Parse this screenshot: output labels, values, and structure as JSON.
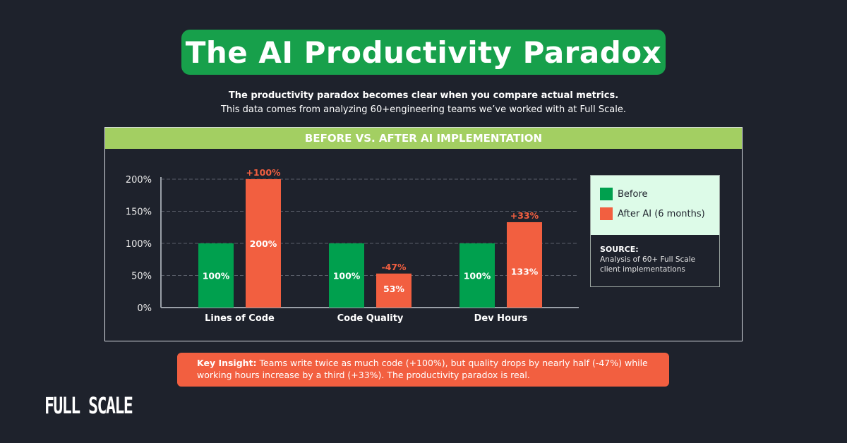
{
  "title": "The AI Productivity Paradox",
  "subtitle_bold": "The productivity paradox becomes clear when you compare actual metrics.",
  "subtitle": "This data comes from analyzing 60+engineering teams we’ve worked with at Full Scale.",
  "panel_header": "BEFORE VS. AFTER AI IMPLEMENTATION",
  "chart_data": {
    "type": "bar",
    "categories": [
      "Lines of Code",
      "Code Quality",
      "Dev Hours"
    ],
    "series": [
      {
        "name": "Before",
        "color": "#00a04e",
        "values": [
          100,
          100,
          100
        ],
        "labels": [
          "100%",
          "100%",
          "100%"
        ]
      },
      {
        "name": "After AI (6 months)",
        "color": "#f25f40",
        "values": [
          200,
          53,
          133
        ],
        "labels": [
          "200%",
          "53%",
          "133%"
        ],
        "change_labels": [
          "+100%",
          "-47%",
          "+33%"
        ]
      }
    ],
    "ylim": [
      0,
      200
    ],
    "yticks": [
      "0%",
      "50%",
      "100%",
      "150%",
      "200%"
    ],
    "grid": true,
    "legend_placement": "right"
  },
  "legend": {
    "items": [
      "Before",
      "After AI (6 months)"
    ],
    "source_label": "SOURCE:",
    "source_text": "Analysis of 60+ Full Scale client implementations"
  },
  "insight": {
    "label": "Key Insight:",
    "text": " Teams write twice as much code (+100%), but quality drops by nearly half (-47%) while working hours increase by a third (+33%). The productivity paradox is real."
  },
  "logo": "FULL SCALE"
}
